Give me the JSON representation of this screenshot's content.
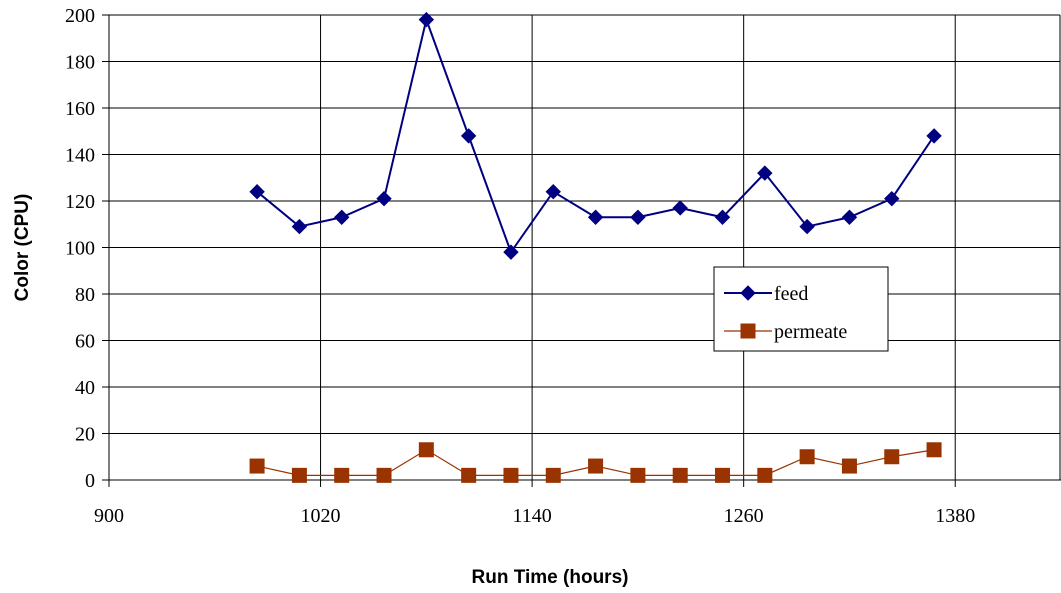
{
  "chart_data": {
    "type": "line",
    "title": "",
    "xlabel": "Run Time (hours)",
    "ylabel": "Color (CPU)",
    "xlim": [
      900,
      1440
    ],
    "ylim": [
      0,
      200
    ],
    "x_ticks": [
      900,
      1020,
      1140,
      1260,
      1380
    ],
    "y_ticks": [
      0,
      20,
      40,
      60,
      80,
      100,
      120,
      140,
      160,
      180,
      200
    ],
    "grid": true,
    "legend_position": "center-right",
    "series": [
      {
        "name": "feed",
        "color": "#000080",
        "marker": "diamond",
        "x": [
          984,
          1008,
          1032,
          1056,
          1080,
          1104,
          1128,
          1152,
          1176,
          1200,
          1224,
          1248,
          1272,
          1296,
          1320,
          1344,
          1368
        ],
        "y": [
          124,
          109,
          113,
          121,
          198,
          148,
          98,
          124,
          113,
          113,
          117,
          113,
          132,
          109,
          113,
          121,
          148
        ]
      },
      {
        "name": "permeate",
        "color": "#993300",
        "marker": "square",
        "x": [
          984,
          1008,
          1032,
          1056,
          1080,
          1104,
          1128,
          1152,
          1176,
          1200,
          1224,
          1248,
          1272,
          1296,
          1320,
          1344,
          1368
        ],
        "y": [
          6,
          2,
          2,
          2,
          13,
          2,
          2,
          2,
          6,
          2,
          2,
          2,
          2,
          10,
          6,
          10,
          13
        ]
      }
    ]
  }
}
